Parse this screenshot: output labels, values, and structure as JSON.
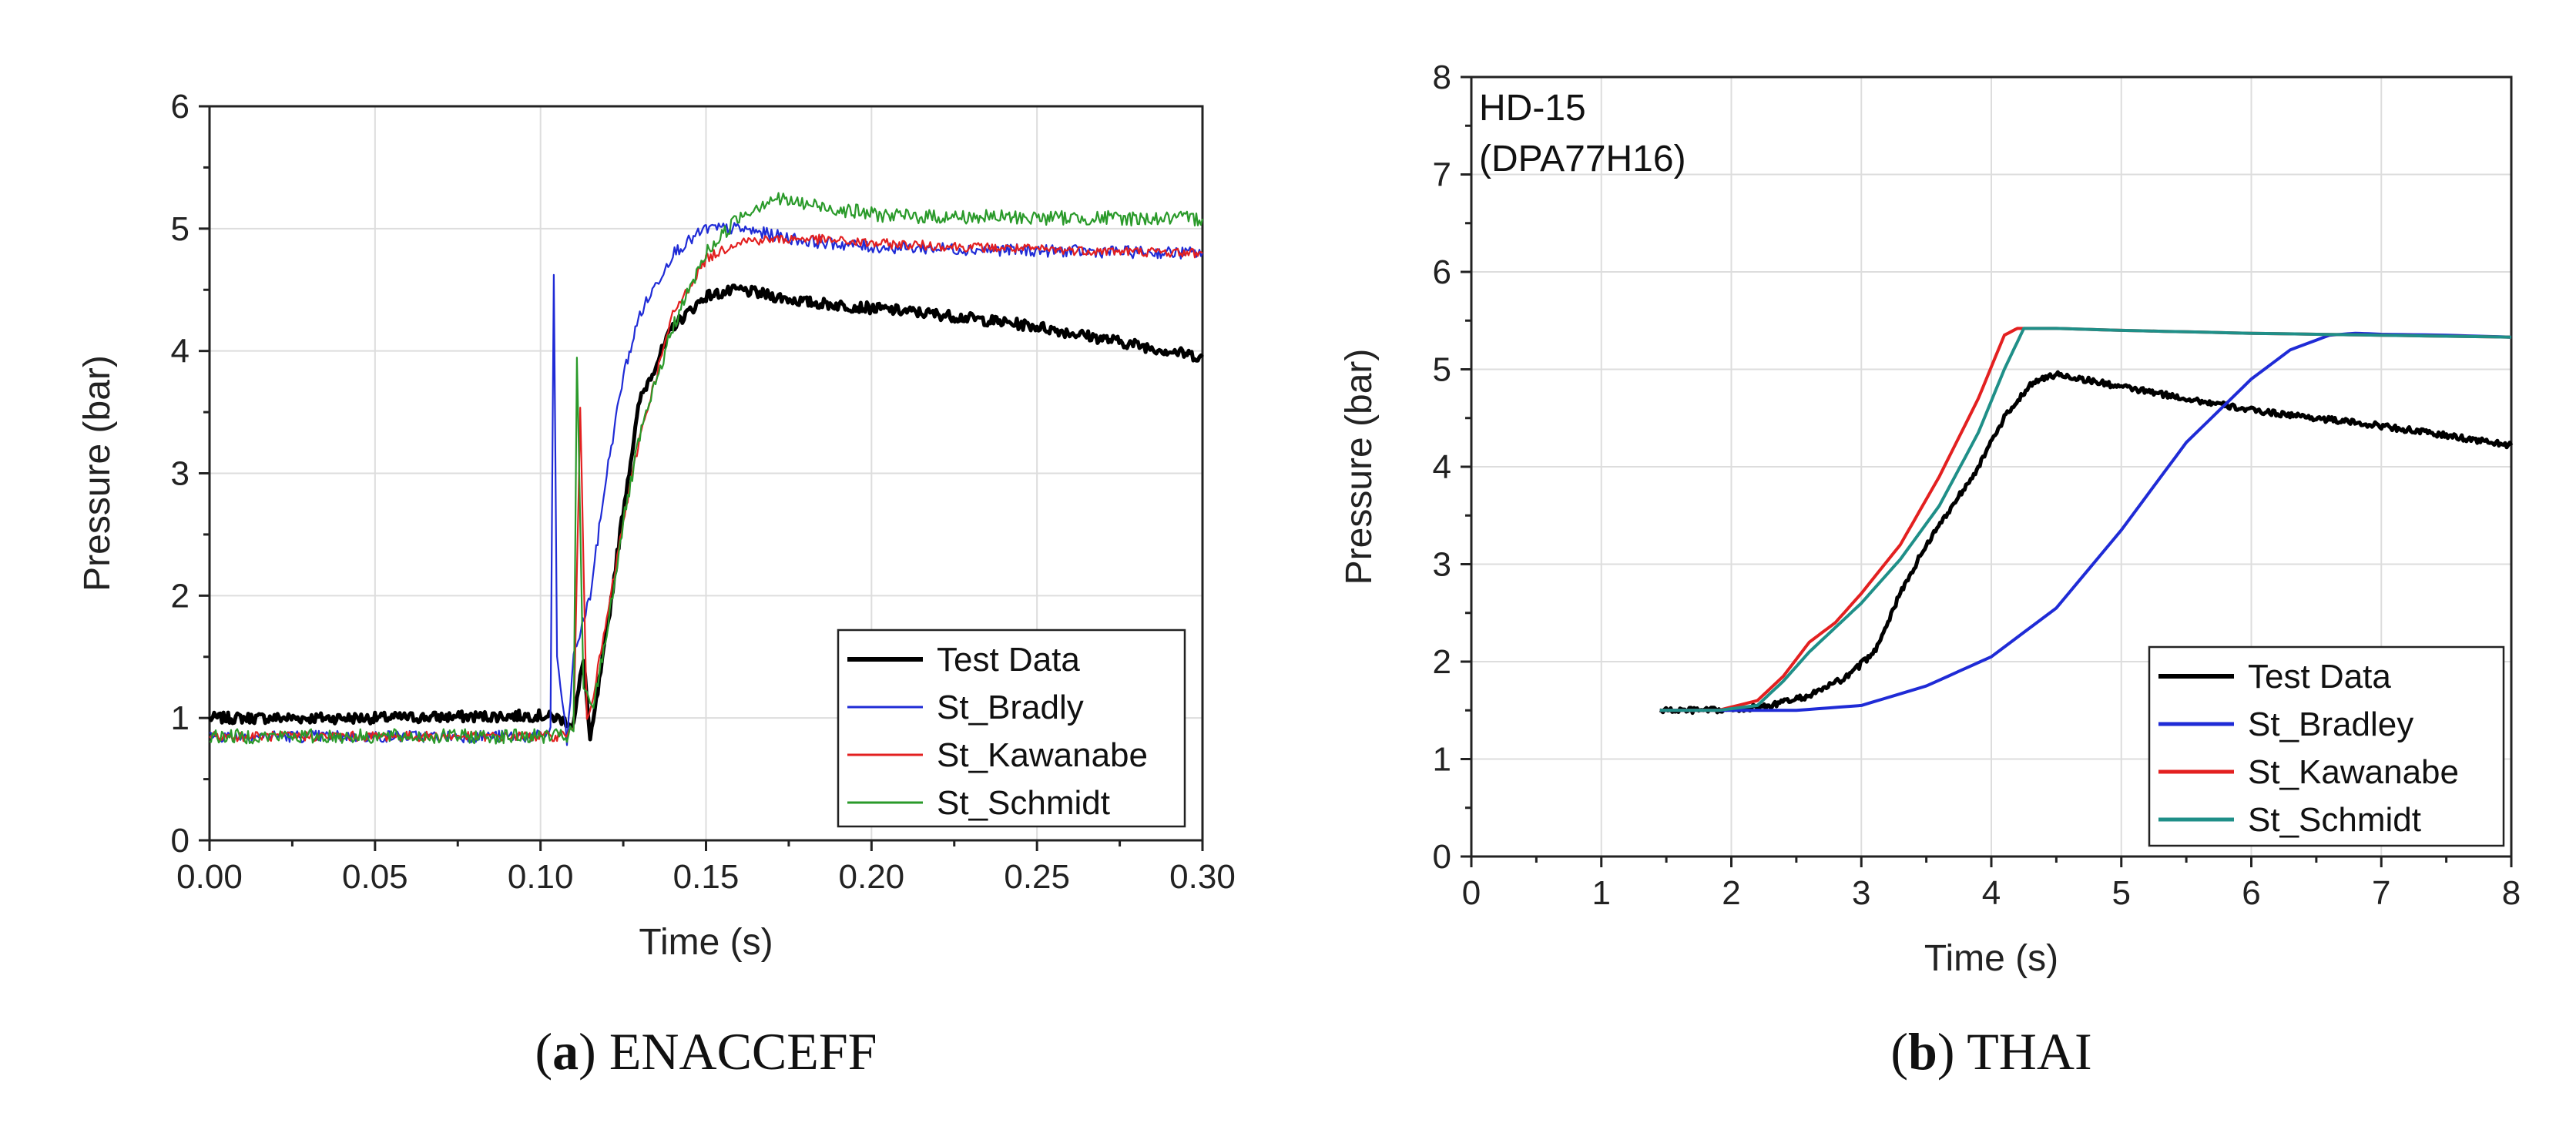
{
  "chart_data": [
    {
      "type": "line",
      "panel_id": "a",
      "caption_label": "a",
      "caption_title": "ENACCEFF",
      "title": "",
      "xlabel": "Time (s)",
      "ylabel": "Pressure (bar)",
      "xlim": [
        0,
        0.3
      ],
      "ylim": [
        0,
        6
      ],
      "xticks": [
        "0.00",
        "0.05",
        "0.10",
        "0.15",
        "0.20",
        "0.25",
        "0.30"
      ],
      "yticks": [
        "0",
        "1",
        "2",
        "3",
        "4",
        "5",
        "6"
      ],
      "grid": true,
      "legend_position": "bottom-right",
      "series": [
        {
          "name": "Test Data",
          "color": "#000000",
          "noise": 0.045,
          "x": [
            0,
            0.05,
            0.1,
            0.105,
            0.11,
            0.113,
            0.115,
            0.12,
            0.125,
            0.13,
            0.14,
            0.15,
            0.16,
            0.17,
            0.18,
            0.2,
            0.22,
            0.25,
            0.28,
            0.3
          ],
          "y": [
            1.0,
            1.0,
            1.02,
            1.0,
            0.95,
            1.5,
            0.8,
            1.7,
            2.7,
            3.6,
            4.2,
            4.45,
            4.5,
            4.45,
            4.4,
            4.35,
            4.3,
            4.2,
            4.05,
            3.95
          ]
        },
        {
          "name": "St_Bradly",
          "color": "#1f2bd6",
          "noise": 0.05,
          "x": [
            0,
            0.1,
            0.103,
            0.104,
            0.105,
            0.108,
            0.11,
            0.115,
            0.12,
            0.125,
            0.13,
            0.14,
            0.15,
            0.16,
            0.18,
            0.2,
            0.25,
            0.3
          ],
          "y": [
            0.85,
            0.85,
            0.9,
            4.65,
            1.5,
            0.8,
            1.5,
            2.0,
            3.0,
            3.8,
            4.3,
            4.8,
            5.0,
            5.0,
            4.9,
            4.85,
            4.82,
            4.8
          ]
        },
        {
          "name": "St_Kawanabe",
          "color": "#e32020",
          "noise": 0.04,
          "x": [
            0,
            0.1,
            0.105,
            0.11,
            0.112,
            0.114,
            0.116,
            0.12,
            0.125,
            0.13,
            0.14,
            0.15,
            0.16,
            0.18,
            0.2,
            0.25,
            0.3
          ],
          "y": [
            0.85,
            0.85,
            0.85,
            0.9,
            3.5,
            1.0,
            1.2,
            1.8,
            2.6,
            3.3,
            4.3,
            4.75,
            4.9,
            4.92,
            4.88,
            4.83,
            4.8
          ]
        },
        {
          "name": "St_Schmidt",
          "color": "#2a9a2a",
          "noise": 0.06,
          "x": [
            0,
            0.1,
            0.108,
            0.11,
            0.111,
            0.113,
            0.116,
            0.12,
            0.125,
            0.13,
            0.14,
            0.15,
            0.16,
            0.17,
            0.18,
            0.2,
            0.21,
            0.25,
            0.3
          ],
          "y": [
            0.85,
            0.85,
            0.85,
            0.9,
            3.95,
            1.2,
            1.1,
            1.7,
            2.6,
            3.3,
            4.2,
            4.8,
            5.1,
            5.25,
            5.2,
            5.12,
            5.1,
            5.09,
            5.08
          ]
        }
      ]
    },
    {
      "type": "line",
      "panel_id": "b",
      "caption_label": "b",
      "caption_title": "THAI",
      "title": "",
      "annotation": [
        "HD-15",
        "(DPA77H16)"
      ],
      "xlabel": "Time (s)",
      "ylabel": "Pressure (bar)",
      "xlim": [
        0,
        8
      ],
      "ylim": [
        0,
        8
      ],
      "xticks": [
        "0",
        "1",
        "2",
        "3",
        "4",
        "5",
        "6",
        "7",
        "8"
      ],
      "yticks": [
        "0",
        "1",
        "2",
        "3",
        "4",
        "5",
        "6",
        "7",
        "8"
      ],
      "grid": true,
      "legend_position": "bottom-right",
      "series": [
        {
          "name": "Test Data",
          "color": "#000000",
          "noise": 0.03,
          "x": [
            1.45,
            2.0,
            2.3,
            2.6,
            2.9,
            3.1,
            3.3,
            3.5,
            3.7,
            3.9,
            4.1,
            4.3,
            4.5,
            4.7,
            5.0,
            5.5,
            6.0,
            6.5,
            7.0,
            7.5,
            8.0
          ],
          "y": [
            1.5,
            1.5,
            1.55,
            1.65,
            1.85,
            2.1,
            2.7,
            3.2,
            3.6,
            4.0,
            4.5,
            4.85,
            4.95,
            4.9,
            4.82,
            4.7,
            4.58,
            4.5,
            4.42,
            4.32,
            4.22
          ]
        },
        {
          "name": "St_Bradley",
          "color": "#1f2bd6",
          "x": [
            1.45,
            2.0,
            2.5,
            3.0,
            3.5,
            4.0,
            4.5,
            5.0,
            5.5,
            6.0,
            6.3,
            6.6,
            6.8,
            7.0,
            7.5,
            8.0
          ],
          "y": [
            1.5,
            1.5,
            1.5,
            1.55,
            1.75,
            2.05,
            2.55,
            3.35,
            4.25,
            4.9,
            5.2,
            5.35,
            5.37,
            5.36,
            5.35,
            5.33
          ]
        },
        {
          "name": "St_Kawanabe",
          "color": "#e32020",
          "x": [
            1.45,
            1.9,
            2.2,
            2.4,
            2.6,
            2.8,
            3.0,
            3.3,
            3.6,
            3.9,
            4.1,
            4.2,
            4.5,
            5.0,
            6.0,
            7.0,
            8.0
          ],
          "y": [
            1.5,
            1.5,
            1.6,
            1.85,
            2.2,
            2.4,
            2.7,
            3.2,
            3.9,
            4.7,
            5.35,
            5.42,
            5.42,
            5.4,
            5.37,
            5.35,
            5.33
          ]
        },
        {
          "name": "St_Schmidt",
          "color": "#1f8f88",
          "x": [
            1.45,
            1.9,
            2.2,
            2.4,
            2.6,
            2.8,
            3.0,
            3.3,
            3.6,
            3.9,
            4.1,
            4.25,
            4.5,
            5.0,
            6.0,
            7.0,
            8.0
          ],
          "y": [
            1.5,
            1.5,
            1.55,
            1.8,
            2.1,
            2.35,
            2.6,
            3.05,
            3.6,
            4.35,
            5.0,
            5.42,
            5.42,
            5.4,
            5.37,
            5.35,
            5.33
          ]
        }
      ]
    }
  ]
}
